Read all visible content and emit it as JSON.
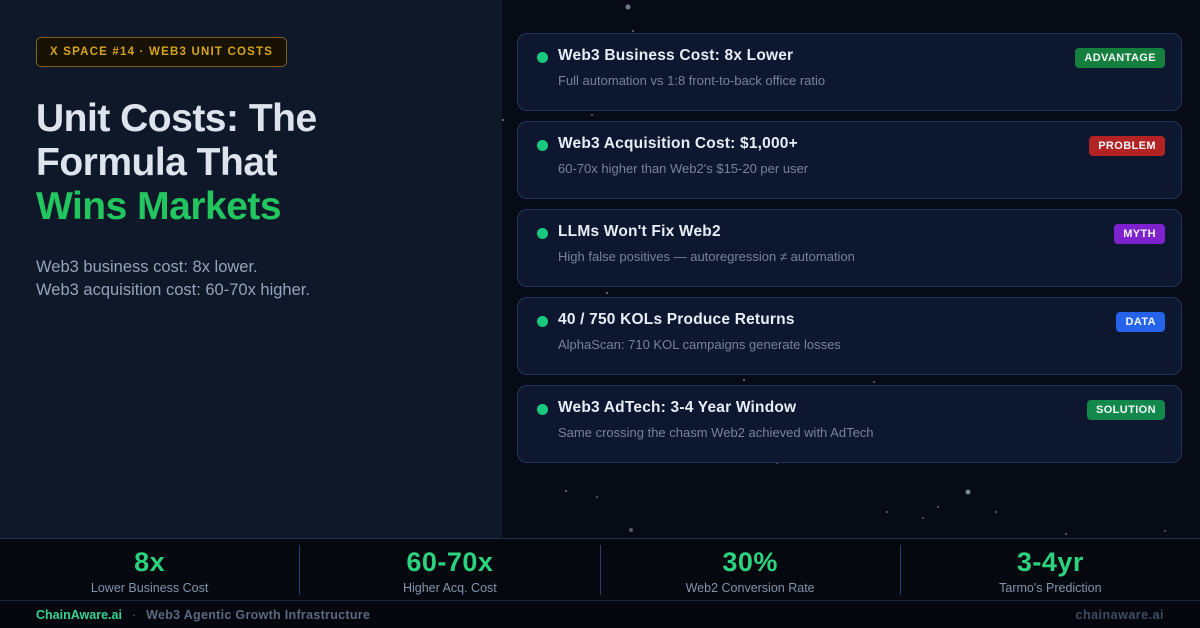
{
  "header": {
    "badge": "X SPACE #14 · WEB3 UNIT COSTS",
    "title_line1": "Unit Costs: The",
    "title_line2": "Formula That",
    "title_accent": "Wins Markets",
    "subtitle_line1": "Web3 business cost: 8x lower.",
    "subtitle_line2": "Web3 acquisition cost: 60-70x higher."
  },
  "cards": [
    {
      "title": "Web3 Business Cost: 8x Lower",
      "subtitle": "Full automation vs 1:8 front-to-back office ratio",
      "badge": "ADVANTAGE",
      "badge_color": "#15803d"
    },
    {
      "title": "Web3 Acquisition Cost: $1,000+",
      "subtitle": "60-70x higher than Web2's $15-20 per user",
      "badge": "PROBLEM",
      "badge_color": "#b42323"
    },
    {
      "title": "LLMs Won't Fix Web2",
      "subtitle": "High false positives — autoregression ≠ automation",
      "badge": "MYTH",
      "badge_color": "#7e22ce"
    },
    {
      "title": "40 / 750 KOLs Produce Returns",
      "subtitle": "AlphaScan: 710 KOL campaigns generate losses",
      "badge": "DATA",
      "badge_color": "#2563eb"
    },
    {
      "title": "Web3 AdTech: 3-4 Year Window",
      "subtitle": "Same crossing the chasm Web2 achieved with AdTech",
      "badge": "SOLUTION",
      "badge_color": "#12894a"
    }
  ],
  "stats": [
    {
      "value": "8x",
      "label": "Lower Business Cost"
    },
    {
      "value": "60-70x",
      "label": "Higher Acq. Cost"
    },
    {
      "value": "30%",
      "label": "Web2 Conversion Rate"
    },
    {
      "value": "3-4yr",
      "label": "Tarmo's Prediction"
    }
  ],
  "footer": {
    "brand": "ChainAware.ai",
    "separator": "·",
    "tagline": "Web3 Agentic Growth Infrastructure",
    "url": "chainaware.ai"
  },
  "colors": {
    "accent_green": "#22c55e",
    "gold": "#d7a41a",
    "dot_green": "#19c97e",
    "stat_green": "#2bd37f"
  }
}
